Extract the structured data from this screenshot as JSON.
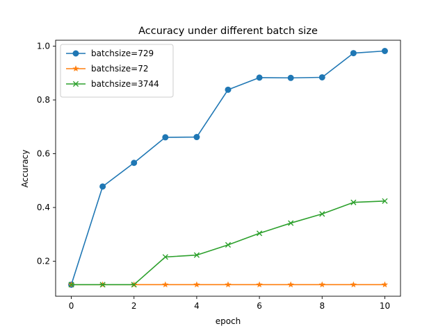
{
  "chart_data": {
    "type": "line",
    "title": "Accuracy under different batch size",
    "xlabel": "epoch",
    "ylabel": "Accuracy",
    "xlim": [
      -0.5,
      10.5
    ],
    "ylim": [
      0.07,
      1.022
    ],
    "xticks": [
      0,
      2,
      4,
      6,
      8,
      10
    ],
    "yticks": [
      0.2,
      0.4,
      0.6,
      0.8,
      1.0
    ],
    "ytick_labels": [
      "0.2",
      "0.4",
      "0.6",
      "0.8",
      "1.0"
    ],
    "grid": false,
    "legend_position": "top-left",
    "x": [
      0,
      1,
      2,
      3,
      4,
      5,
      6,
      7,
      8,
      9,
      10
    ],
    "series": [
      {
        "name": "batchsize=729",
        "color": "#1f77b4",
        "marker": "circle",
        "values": [
          0.113,
          0.478,
          0.566,
          0.661,
          0.662,
          0.838,
          0.883,
          0.882,
          0.884,
          0.974,
          0.982
        ]
      },
      {
        "name": "batchsize=72",
        "color": "#ff7f0e",
        "marker": "star",
        "values": [
          0.113,
          0.113,
          0.113,
          0.113,
          0.113,
          0.113,
          0.113,
          0.113,
          0.113,
          0.113,
          0.113
        ]
      },
      {
        "name": "batchsize=3744",
        "color": "#2ca02c",
        "marker": "x",
        "values": [
          0.113,
          0.113,
          0.113,
          0.216,
          0.223,
          0.261,
          0.304,
          0.342,
          0.376,
          0.419,
          0.424
        ]
      }
    ]
  }
}
